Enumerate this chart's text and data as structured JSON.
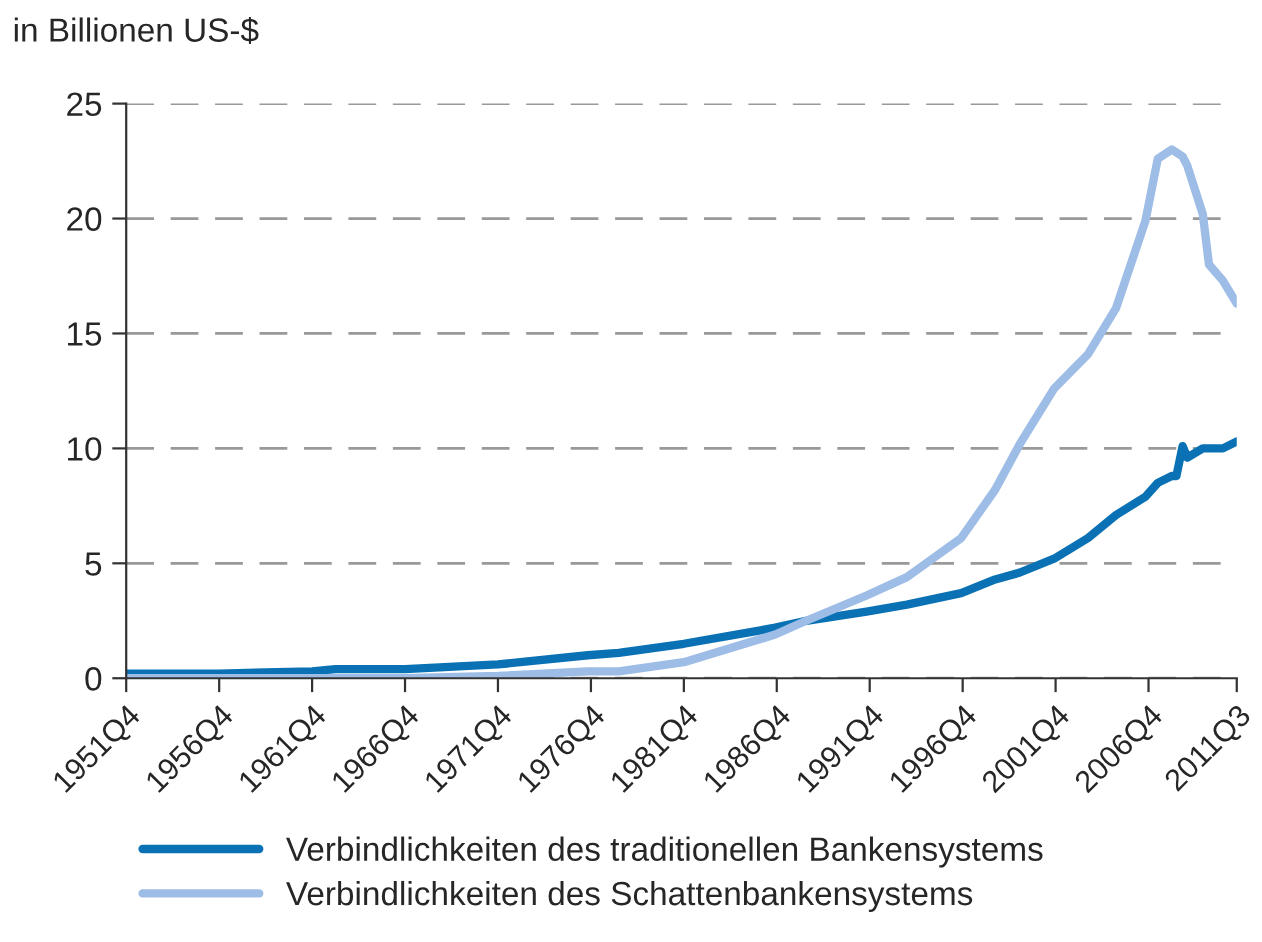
{
  "chart_data": {
    "type": "line",
    "ylabel": "in Billionen US-$",
    "xlim": [
      "1951-10",
      "2011-07"
    ],
    "xticks": [
      {
        "value": "1951-10",
        "label": "1951Q4"
      },
      {
        "value": "1956-10",
        "label": "1956Q4"
      },
      {
        "value": "1961-10",
        "label": "1961Q4"
      },
      {
        "value": "1966-10",
        "label": "1966Q4"
      },
      {
        "value": "1971-10",
        "label": "1971Q4"
      },
      {
        "value": "1976-10",
        "label": "1976Q4"
      },
      {
        "value": "1981-10",
        "label": "1981Q4"
      },
      {
        "value": "1986-10",
        "label": "1986Q4"
      },
      {
        "value": "1991-10",
        "label": "1991Q4"
      },
      {
        "value": "1996-10",
        "label": "1996Q4"
      },
      {
        "value": "2001-10",
        "label": "2001Q4"
      },
      {
        "value": "2006-10",
        "label": "2006Q4"
      },
      {
        "value": "2011-07",
        "label": "2011Q3"
      }
    ],
    "ylim": [
      0,
      25
    ],
    "yticks": [
      0,
      5,
      10,
      15,
      20,
      25
    ],
    "grid": "y",
    "legend": "bottom",
    "line_style": "solid",
    "marker": "none",
    "series": [
      {
        "name": "Verbindlichkeiten des traditionellen Bankensystems",
        "color": "#0a72b4",
        "x": [
          "1951-10",
          "1956-10",
          "1961-10",
          "1963-01",
          "1966-10",
          "1971-10",
          "1976-08",
          "1978-04",
          "1981-10",
          "1986-09",
          "1988-05",
          "1991-08",
          "1993-10",
          "1996-09",
          "1998-07",
          "1999-11",
          "2001-09",
          "2003-07",
          "2005-01",
          "2006-08",
          "2007-04",
          "2008-01",
          "2008-04",
          "2008-08",
          "2008-11",
          "2009-09",
          "2010-10",
          "2011-07"
        ],
        "values": [
          0.2,
          0.2,
          0.3,
          0.4,
          0.4,
          0.6,
          1.0,
          1.1,
          1.5,
          2.2,
          2.5,
          2.9,
          3.2,
          3.7,
          4.3,
          4.6,
          5.2,
          6.1,
          7.1,
          7.9,
          8.5,
          8.8,
          8.8,
          10.1,
          9.6,
          10.0,
          10.0,
          10.3
        ]
      },
      {
        "name": "Verbindlichkeiten des Schattenbankensystems",
        "color": "#9dbce6",
        "x": [
          "1951-10",
          "1956-10",
          "1961-10",
          "1966-10",
          "1971-10",
          "1976-08",
          "1978-04",
          "1981-10",
          "1986-09",
          "1988-05",
          "1991-08",
          "1993-10",
          "1996-09",
          "1998-07",
          "1999-11",
          "2001-09",
          "2003-07",
          "2005-01",
          "2006-08",
          "2007-04",
          "2008-01",
          "2008-08",
          "2008-11",
          "2009-09",
          "2010-01",
          "2010-10",
          "2011-07"
        ],
        "values": [
          0.0,
          0.0,
          0.0,
          0.0,
          0.1,
          0.3,
          0.3,
          0.7,
          1.9,
          2.5,
          3.6,
          4.4,
          6.1,
          8.2,
          10.2,
          12.6,
          14.1,
          16.1,
          19.9,
          22.6,
          23.0,
          22.7,
          22.3,
          20.2,
          18.0,
          17.3,
          16.3
        ]
      }
    ]
  }
}
